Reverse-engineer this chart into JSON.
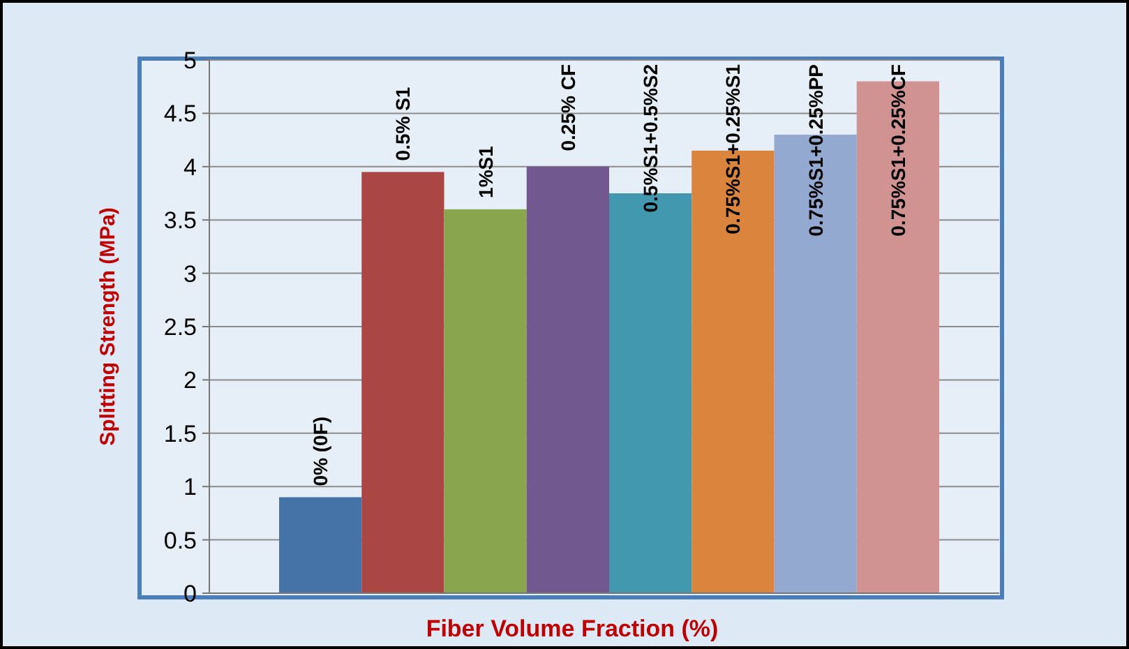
{
  "chart_data": {
    "type": "bar",
    "xlabel": "Fiber Volume Fraction (%)",
    "ylabel": "Splitting Strength (MPa)",
    "categories": [
      "0% (0F)",
      "0.5% S1",
      "1%S1",
      "0.25% CF",
      "0.5%S1+0.5%S2",
      "0.75%S1+0.25%S1",
      "0.75%S1+0.25%PP",
      "0.75%S1+0.25%CF"
    ],
    "values": [
      0.9,
      3.95,
      3.6,
      4.0,
      3.75,
      4.15,
      4.3,
      4.8
    ],
    "colors": [
      "#4572a7",
      "#aa4643",
      "#89a54e",
      "#71588f",
      "#4198af",
      "#db843d",
      "#93a9cf",
      "#d19392"
    ],
    "ylim": [
      0,
      5
    ],
    "yticks": [
      0,
      0.5,
      1,
      1.5,
      2,
      2.5,
      3,
      3.5,
      4,
      4.5,
      5
    ],
    "grid": "y"
  }
}
